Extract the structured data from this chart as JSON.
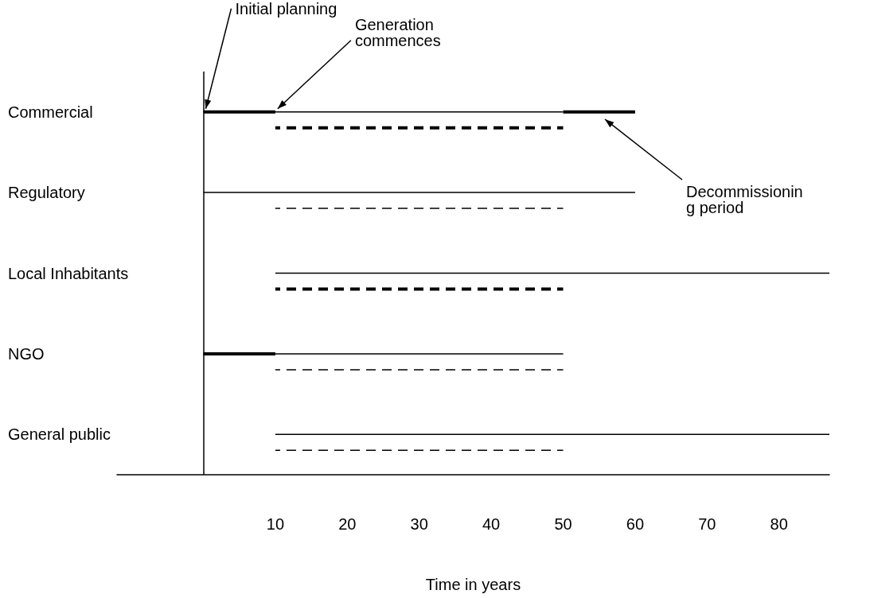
{
  "chart_data": {
    "type": "bar",
    "orientation": "horizontal",
    "xlabel": "Time in years",
    "categories": [
      "Commercial",
      "Regulatory",
      "Local Inhabitants",
      "NGO",
      "General public"
    ],
    "series": [
      {
        "color": "#000000",
        "line_style": "solid",
        "base": [
          0,
          null,
          null,
          0,
          null
        ],
        "values": [
          10,
          null,
          null,
          10,
          null
        ]
      },
      {
        "color": "#000000",
        "line_style": "solid",
        "base": [
          50,
          null,
          null,
          null,
          null
        ],
        "values": [
          10,
          null,
          null,
          null,
          null
        ]
      },
      {
        "color": "#000000",
        "line_style": "solid",
        "base": [
          10,
          0,
          10,
          10,
          10
        ],
        "values": [
          40,
          60,
          77,
          40,
          77
        ]
      },
      {
        "color": "#000000",
        "line_style": "dashed",
        "base": [
          10,
          null,
          10,
          null,
          null
        ],
        "values": [
          40,
          null,
          40,
          null,
          null
        ]
      },
      {
        "color": "#000000",
        "line_style": "dashed",
        "base": [
          null,
          10,
          null,
          10,
          10
        ],
        "values": [
          null,
          40,
          null,
          40,
          40
        ]
      }
    ],
    "xlim": [
      -12,
      87
    ],
    "xticks": [
      10,
      20,
      30,
      40,
      50,
      60,
      70,
      80
    ],
    "ref_lines": [
      {
        "axis": "x",
        "value": 0,
        "label": null,
        "color": "#000000"
      }
    ],
    "annotations": [
      {
        "text": "Initial planning",
        "x": 0,
        "y": "Commercial"
      },
      {
        "text": "Generation commences",
        "x": 10,
        "y": "Commercial"
      },
      "Decommissioning period"
    ],
    "grid": false
  }
}
